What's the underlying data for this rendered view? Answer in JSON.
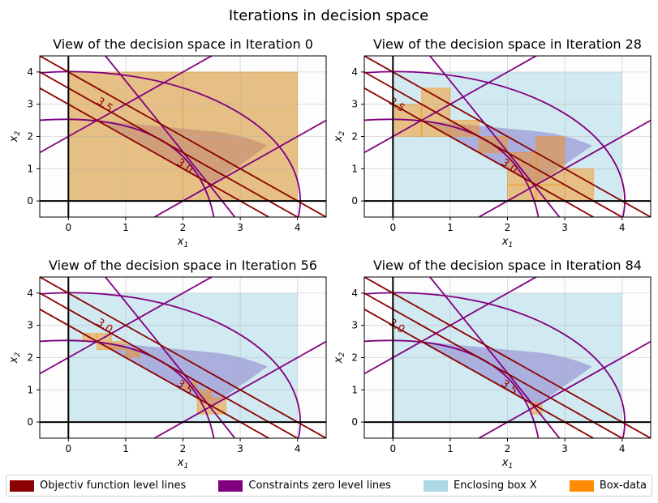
{
  "figure": {
    "title": "Iterations in decision space"
  },
  "legend": {
    "items": [
      {
        "label": "Objectiv function level lines",
        "color": "#8B0000"
      },
      {
        "label": "Constraints zero level lines",
        "color": "#800080"
      },
      {
        "label": "Enclosing box X",
        "color": "#ADD8E6"
      },
      {
        "label": "Box-data",
        "color": "#FF8C00"
      }
    ]
  },
  "chart_data": [
    {
      "type": "contour",
      "title": "View of the decision space in Iteration 0",
      "xlabel": "x1",
      "ylabel": "x2",
      "xlim": [
        -0.5,
        4.5
      ],
      "ylim": [
        -0.5,
        4.5
      ],
      "xticks": [
        0,
        1,
        2,
        3,
        4
      ],
      "yticks": [
        0,
        1,
        2,
        3,
        4
      ],
      "grid": true,
      "enclosing_box": {
        "x": [
          0,
          4
        ],
        "y": [
          0,
          4
        ]
      },
      "feasible_region_visible": true,
      "objective_levels": [
        3.0,
        3.5
      ],
      "objective_level_labels_shown": [
        3.5,
        3.0
      ],
      "boxes": [
        {
          "x": [
            0,
            2
          ],
          "y": [
            0,
            4
          ]
        },
        {
          "x": [
            2,
            4
          ],
          "y": [
            0,
            4
          ]
        }
      ]
    },
    {
      "type": "contour",
      "title": "View of the decision space in Iteration 28",
      "xlabel": "x1",
      "ylabel": "x2",
      "xlim": [
        -0.5,
        4.5
      ],
      "ylim": [
        -0.5,
        4.5
      ],
      "xticks": [
        0,
        1,
        2,
        3,
        4
      ],
      "yticks": [
        0,
        1,
        2,
        3,
        4
      ],
      "grid": true,
      "enclosing_box": {
        "x": [
          0,
          4
        ],
        "y": [
          0,
          4
        ]
      },
      "feasible_region_visible": true,
      "objective_levels": [
        3.0,
        3.5
      ],
      "objective_level_labels_shown": [
        3.5,
        3.0
      ],
      "boxes": [
        {
          "x": [
            0,
            0.5
          ],
          "y": [
            2.0,
            3.0
          ]
        },
        {
          "x": [
            0.5,
            1.0
          ],
          "y": [
            2.0,
            3.5
          ]
        },
        {
          "x": [
            1.0,
            1.5
          ],
          "y": [
            2.0,
            2.5
          ]
        },
        {
          "x": [
            1.5,
            2.0
          ],
          "y": [
            1.5,
            2.0
          ]
        },
        {
          "x": [
            2.0,
            2.5
          ],
          "y": [
            0.5,
            1.5
          ]
        },
        {
          "x": [
            2.0,
            2.5
          ],
          "y": [
            0.0,
            0.5
          ]
        },
        {
          "x": [
            2.5,
            3.0
          ],
          "y": [
            0.5,
            2.0
          ]
        },
        {
          "x": [
            2.5,
            3.0
          ],
          "y": [
            0.0,
            0.5
          ]
        },
        {
          "x": [
            3.0,
            3.5
          ],
          "y": [
            0.0,
            1.0
          ]
        }
      ]
    },
    {
      "type": "contour",
      "title": "View of the decision space in Iteration 56",
      "xlabel": "x1",
      "ylabel": "x2",
      "xlim": [
        -0.5,
        4.5
      ],
      "ylim": [
        -0.5,
        4.5
      ],
      "xticks": [
        0,
        1,
        2,
        3,
        4
      ],
      "yticks": [
        0,
        1,
        2,
        3,
        4
      ],
      "grid": true,
      "enclosing_box": {
        "x": [
          0,
          4
        ],
        "y": [
          0,
          4
        ]
      },
      "feasible_region_visible": true,
      "objective_levels": [
        3.0,
        3.5
      ],
      "objective_level_labels_shown": [
        3.0,
        3.5
      ],
      "boxes": [
        {
          "x": [
            0.25,
            0.5
          ],
          "y": [
            2.5,
            2.75
          ]
        },
        {
          "x": [
            0.5,
            0.75
          ],
          "y": [
            2.25,
            2.75
          ]
        },
        {
          "x": [
            0.75,
            1.0
          ],
          "y": [
            2.25,
            2.5
          ]
        },
        {
          "x": [
            1.0,
            1.25
          ],
          "y": [
            2.0,
            2.25
          ]
        },
        {
          "x": [
            2.0,
            2.25
          ],
          "y": [
            1.0,
            1.25
          ]
        },
        {
          "x": [
            2.25,
            2.5
          ],
          "y": [
            0.75,
            1.0
          ]
        },
        {
          "x": [
            2.25,
            2.75
          ],
          "y": [
            0.25,
            0.75
          ]
        }
      ]
    },
    {
      "type": "contour",
      "title": "View of the decision space in Iteration 84",
      "xlabel": "x1",
      "ylabel": "x2",
      "xlim": [
        -0.5,
        4.5
      ],
      "ylim": [
        -0.5,
        4.5
      ],
      "xticks": [
        0,
        1,
        2,
        3,
        4
      ],
      "yticks": [
        0,
        1,
        2,
        3,
        4
      ],
      "grid": true,
      "enclosing_box": {
        "x": [
          0,
          4
        ],
        "y": [
          0,
          4
        ]
      },
      "feasible_region_visible": true,
      "objective_levels": [
        3.0,
        3.5
      ],
      "objective_level_labels_shown": [
        3.0,
        3.5
      ],
      "boxes": [
        {
          "x": [
            2.4,
            2.6
          ],
          "y": [
            0.25,
            0.6
          ]
        }
      ]
    }
  ]
}
